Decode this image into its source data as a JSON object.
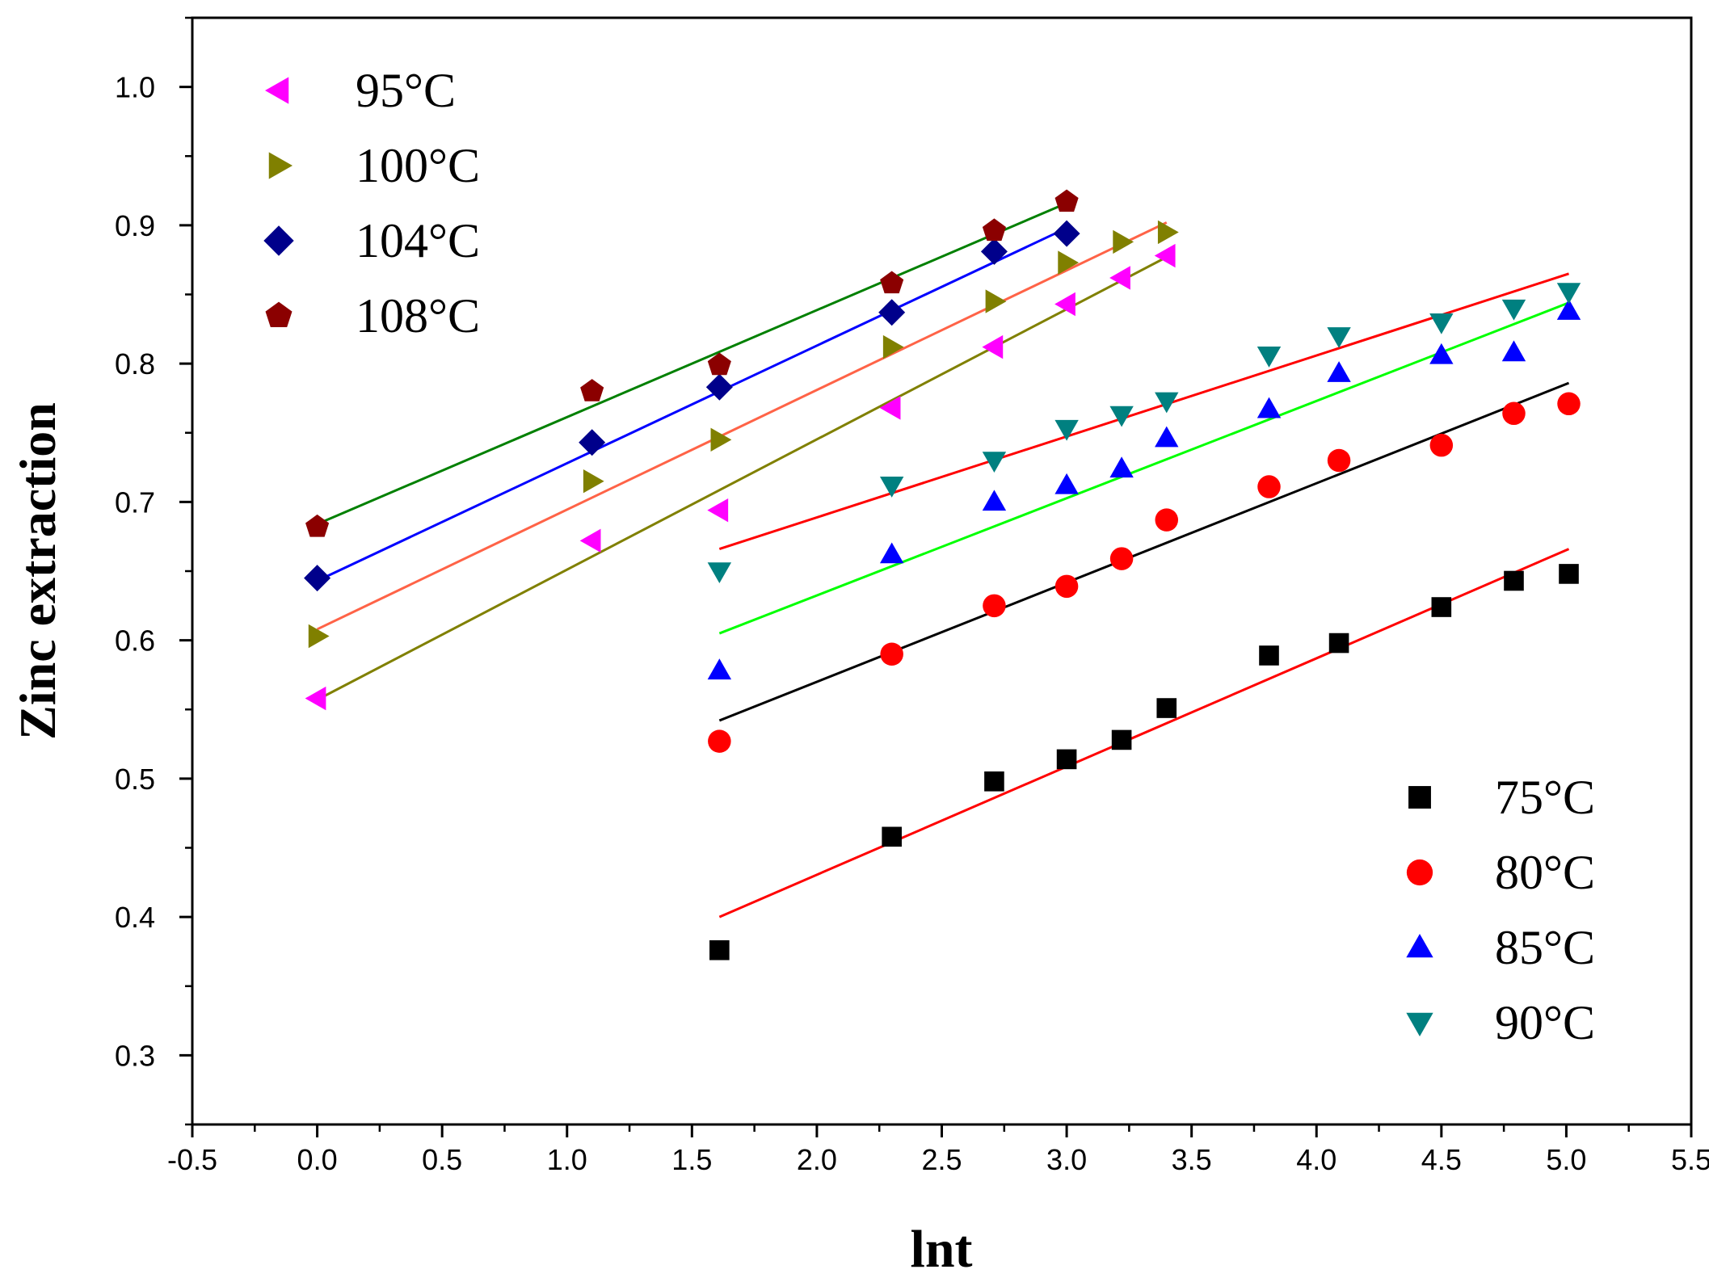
{
  "chart_data": {
    "type": "scatter",
    "title": "",
    "xlabel": "lnt",
    "ylabel": "Zinc extraction",
    "xlim": [
      -0.5,
      5.5
    ],
    "ylim": [
      0.25,
      1.05
    ],
    "xticks": [
      "-0.5",
      "0.0",
      "0.5",
      "1.0",
      "1.5",
      "2.0",
      "2.5",
      "3.0",
      "3.5",
      "4.0",
      "4.5",
      "5.0",
      "5.5"
    ],
    "yticks": [
      "0.3",
      "0.4",
      "0.5",
      "0.6",
      "0.7",
      "0.8",
      "0.9",
      "1.0"
    ],
    "grid": false,
    "legend_groups": [
      {
        "placement": "top-left",
        "entries": [
          "95°C",
          "100°C",
          "104°C",
          "108°C"
        ]
      },
      {
        "placement": "bottom-right",
        "entries": [
          "75°C",
          "80°C",
          "85°C",
          "90°C"
        ]
      }
    ],
    "series": [
      {
        "name": "75°C",
        "marker": "square",
        "color": "#000000",
        "fit_color": "#ff0000",
        "x": [
          1.61,
          2.3,
          2.71,
          3.0,
          3.22,
          3.4,
          3.81,
          4.09,
          4.5,
          4.79,
          5.01
        ],
        "y": [
          0.376,
          0.458,
          0.498,
          0.514,
          0.528,
          0.551,
          0.589,
          0.598,
          0.624,
          0.643,
          0.648
        ],
        "fit": [
          [
            1.61,
            0.4
          ],
          [
            5.01,
            0.666
          ]
        ]
      },
      {
        "name": "80°C",
        "marker": "circle",
        "color": "#ff0000",
        "fit_color": "#000000",
        "x": [
          1.61,
          2.3,
          2.71,
          3.0,
          3.22,
          3.4,
          3.81,
          4.09,
          4.5,
          4.79,
          5.01
        ],
        "y": [
          0.527,
          0.59,
          0.625,
          0.639,
          0.659,
          0.687,
          0.711,
          0.73,
          0.741,
          0.764,
          0.771
        ],
        "fit": [
          [
            1.61,
            0.542
          ],
          [
            5.01,
            0.786
          ]
        ]
      },
      {
        "name": "85°C",
        "marker": "triangle-up",
        "color": "#0000ff",
        "fit_color": "#00ff00",
        "x": [
          1.61,
          2.3,
          2.71,
          3.0,
          3.22,
          3.4,
          3.81,
          4.09,
          4.5,
          4.79,
          5.01
        ],
        "y": [
          0.578,
          0.662,
          0.7,
          0.712,
          0.724,
          0.746,
          0.767,
          0.793,
          0.806,
          0.808,
          0.838
        ],
        "fit": [
          [
            1.61,
            0.605
          ],
          [
            5.01,
            0.844
          ]
        ]
      },
      {
        "name": "90°C",
        "marker": "triangle-down",
        "color": "#008080",
        "fit_color": "#ff0000",
        "x": [
          1.61,
          2.3,
          2.71,
          3.0,
          3.22,
          3.4,
          3.81,
          4.09,
          4.5,
          4.79,
          5.01
        ],
        "y": [
          0.65,
          0.712,
          0.73,
          0.753,
          0.763,
          0.773,
          0.806,
          0.82,
          0.83,
          0.84,
          0.852
        ],
        "fit": [
          [
            1.61,
            0.666
          ],
          [
            5.01,
            0.865
          ]
        ]
      },
      {
        "name": "95°C",
        "marker": "triangle-left",
        "color": "#ff00ff",
        "fit_color": "#808000",
        "x": [
          0.0,
          1.1,
          1.61,
          2.3,
          2.71,
          3.0,
          3.22,
          3.4
        ],
        "y": [
          0.558,
          0.672,
          0.694,
          0.768,
          0.812,
          0.843,
          0.862,
          0.878
        ],
        "fit": [
          [
            0.0,
            0.557
          ],
          [
            3.4,
            0.877
          ]
        ]
      },
      {
        "name": "100°C",
        "marker": "triangle-right",
        "color": "#808000",
        "fit_color": "#ff6347",
        "x": [
          0.0,
          1.1,
          1.61,
          2.3,
          2.71,
          3.0,
          3.22,
          3.4
        ],
        "y": [
          0.603,
          0.715,
          0.745,
          0.812,
          0.845,
          0.873,
          0.888,
          0.895
        ],
        "fit": [
          [
            0.0,
            0.608
          ],
          [
            3.4,
            0.902
          ]
        ]
      },
      {
        "name": "104°C",
        "marker": "diamond",
        "color": "#00008b",
        "fit_color": "#0000ff",
        "x": [
          0.0,
          1.1,
          1.61,
          2.3,
          2.71,
          3.0
        ],
        "y": [
          0.645,
          0.743,
          0.783,
          0.837,
          0.881,
          0.894
        ],
        "fit": [
          [
            0.0,
            0.643
          ],
          [
            3.0,
            0.898
          ]
        ]
      },
      {
        "name": "108°C",
        "marker": "pentagon",
        "color": "#8b0000",
        "fit_color": "#008000",
        "x": [
          0.0,
          1.1,
          1.61,
          2.3,
          2.71,
          3.0
        ],
        "y": [
          0.682,
          0.78,
          0.799,
          0.858,
          0.896,
          0.917
        ],
        "fit": [
          [
            0.0,
            0.684
          ],
          [
            3.0,
            0.916
          ]
        ]
      }
    ]
  }
}
